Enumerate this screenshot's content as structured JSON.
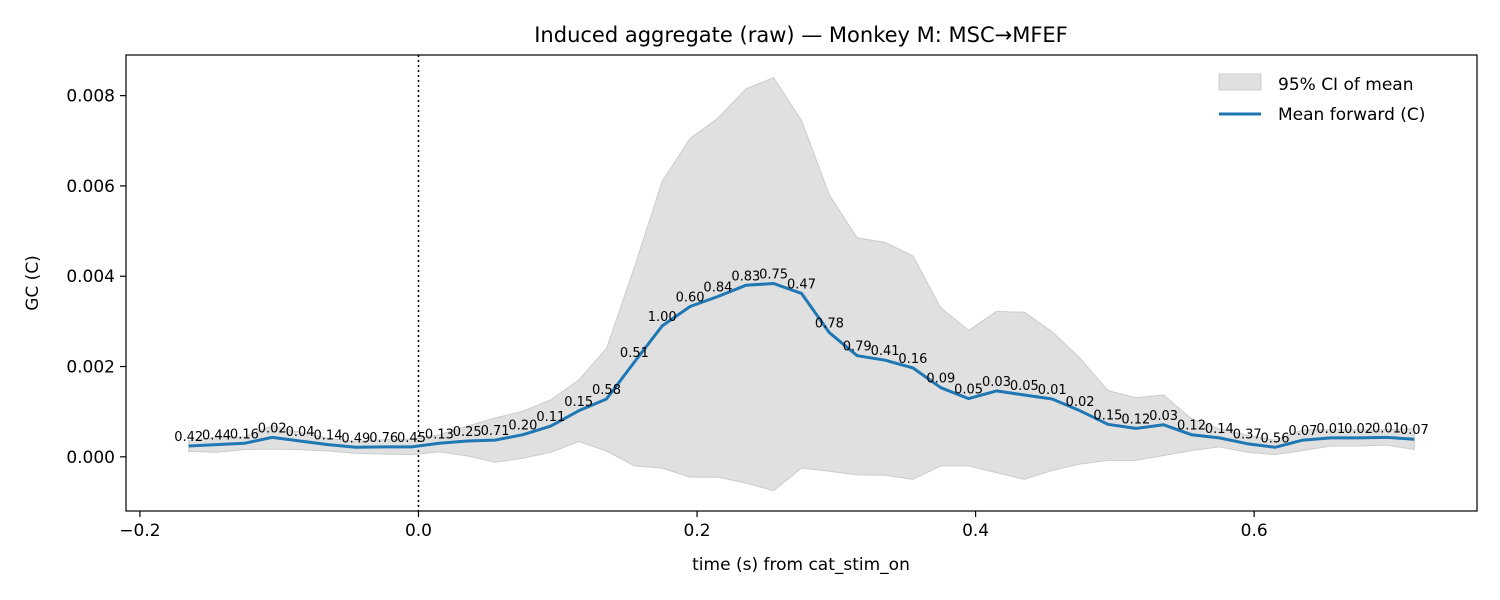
{
  "chart_data": {
    "type": "line",
    "title": "Induced aggregate (raw) — Monkey M: MSC→MFEF",
    "xlabel": "time (s) from cat_stim_on",
    "ylabel": "GC (C)",
    "xlim": [
      -0.21,
      0.76
    ],
    "ylim": [
      -0.0012,
      0.0089
    ],
    "xticks": [
      -0.2,
      0.0,
      0.2,
      0.4,
      0.6
    ],
    "xtick_labels": [
      "−0.2",
      "0.0",
      "0.2",
      "0.4",
      "0.6"
    ],
    "yticks": [
      0.0,
      0.002,
      0.004,
      0.006,
      0.008
    ],
    "ytick_labels": [
      "0.000",
      "0.002",
      "0.004",
      "0.006",
      "0.008"
    ],
    "vline_x": 0.0,
    "legend_position": "top-right",
    "legend": {
      "ci_label": "95% CI of mean",
      "mean_label": "Mean forward (C)"
    },
    "colors": {
      "mean": "#1f77b4",
      "ci_fill": "#e0e0e0",
      "ci_edge": "#cccccc"
    },
    "x": [
      -0.165,
      -0.145,
      -0.125,
      -0.105,
      -0.085,
      -0.065,
      -0.045,
      -0.025,
      -0.005,
      0.015,
      0.035,
      0.055,
      0.075,
      0.095,
      0.115,
      0.135,
      0.155,
      0.175,
      0.195,
      0.215,
      0.235,
      0.255,
      0.275,
      0.295,
      0.315,
      0.335,
      0.355,
      0.375,
      0.395,
      0.415,
      0.435,
      0.455,
      0.475,
      0.495,
      0.515,
      0.535,
      0.555,
      0.575,
      0.595,
      0.615,
      0.635,
      0.655,
      0.675,
      0.695,
      0.715
    ],
    "series": [
      {
        "name": "Mean forward (C)",
        "values": [
          0.00024,
          0.00027,
          0.0003,
          0.00043,
          0.00035,
          0.00027,
          0.00021,
          0.00022,
          0.00022,
          0.0003,
          0.00035,
          0.00037,
          0.00049,
          0.00068,
          0.00102,
          0.00128,
          0.0021,
          0.0029,
          0.00333,
          0.00355,
          0.0038,
          0.00384,
          0.00362,
          0.00275,
          0.00224,
          0.00214,
          0.00197,
          0.00153,
          0.00129,
          0.00146,
          0.00137,
          0.00128,
          0.00102,
          0.00072,
          0.00063,
          0.00071,
          0.00049,
          0.00042,
          0.00029,
          0.00021,
          0.00037,
          0.00042,
          0.00042,
          0.00043,
          0.00039
        ],
        "ci_lower": [
          0.00012,
          0.0001,
          0.00016,
          0.00017,
          0.00016,
          0.00013,
          8e-05,
          6e-05,
          5e-05,
          0.00011,
          2e-05,
          -0.00012,
          -3e-05,
          0.0001,
          0.00034,
          0.00013,
          -0.0002,
          -0.00025,
          -0.00045,
          -0.00045,
          -0.00058,
          -0.00075,
          -0.00025,
          -0.00032,
          -0.0004,
          -0.00041,
          -0.0005,
          -0.0002,
          -0.0002,
          -0.00035,
          -0.0005,
          -0.0003,
          -0.00016,
          -8e-05,
          -8e-05,
          3e-05,
          0.00014,
          0.00022,
          0.0001,
          5e-05,
          0.00014,
          0.00024,
          0.00024,
          0.00026,
          0.00016
        ],
        "ci_upper": [
          0.00036,
          0.00044,
          0.00044,
          0.00069,
          0.00054,
          0.00041,
          0.00034,
          0.00038,
          0.00039,
          0.00049,
          0.00068,
          0.00086,
          0.00101,
          0.00126,
          0.0017,
          0.0024,
          0.0042,
          0.0061,
          0.00705,
          0.0075,
          0.00815,
          0.0084,
          0.00745,
          0.0058,
          0.00485,
          0.00475,
          0.00445,
          0.0033,
          0.0028,
          0.00322,
          0.0032,
          0.00277,
          0.00218,
          0.00147,
          0.00131,
          0.00137,
          0.00084,
          0.00062,
          0.00048,
          0.00037,
          0.0006,
          0.0006,
          0.0006,
          0.0006,
          0.00062
        ]
      }
    ],
    "point_labels": [
      "0.42",
      "0.44",
      "0.16",
      "0.02",
      "0.04",
      "0.14",
      "0.49",
      "0.76",
      "0.45",
      "0.13",
      "0.25",
      "0.71",
      "0.20",
      "0.11",
      "0.15",
      "0.58",
      "0.51",
      "1.00",
      "0.60",
      "0.84",
      "0.83",
      "0.75",
      "0.47",
      "0.78",
      "0.79",
      "0.41",
      "0.16",
      "0.09",
      "0.05",
      "0.03",
      "0.05",
      "0.01",
      "0.02",
      "0.15",
      "0.12",
      "0.03",
      "0.12",
      "0.14",
      "0.37",
      "0.56",
      "0.07",
      "0.01",
      "0.02",
      "0.01",
      "0.07"
    ]
  }
}
